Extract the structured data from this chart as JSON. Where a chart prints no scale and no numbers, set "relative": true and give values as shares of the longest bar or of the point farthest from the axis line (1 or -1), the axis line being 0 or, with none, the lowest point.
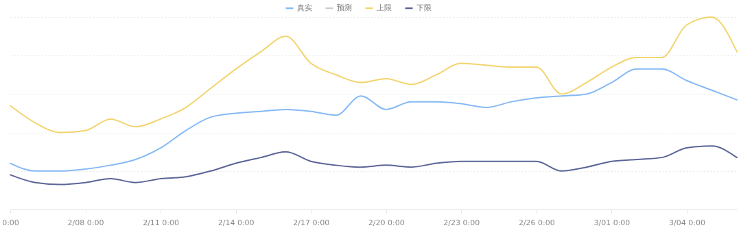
{
  "chart_data": {
    "type": "line",
    "relative": true,
    "grid": "y",
    "legend": "top",
    "line_style": "solid",
    "marker": "none",
    "x": [
      "--02-05",
      "--02-06",
      "--02-07",
      "--02-08",
      "--02-09",
      "--02-10",
      "--02-11",
      "--02-12",
      "--02-13",
      "--02-14",
      "--02-15",
      "--02-16",
      "--02-17",
      "--02-18",
      "--02-19",
      "--02-20",
      "--02-21",
      "--02-22",
      "--02-23",
      "--02-24",
      "--02-25",
      "--02-26",
      "--02-27",
      "--02-28",
      "--03-01",
      "--03-02",
      "--03-03",
      "--03-04",
      "--03-05",
      "--03-06"
    ],
    "xlim": [
      "--02-05",
      "--03-06"
    ],
    "xticks": [
      {
        "value": "--02-05",
        "label": "0:00"
      },
      {
        "value": "--02-08",
        "label": "2/08 0:00"
      },
      {
        "value": "--02-11",
        "label": "2/11 0:00"
      },
      {
        "value": "--02-14",
        "label": "2/14 0:00"
      },
      {
        "value": "--02-17",
        "label": "2/17 0:00"
      },
      {
        "value": "--02-20",
        "label": "2/20 0:00"
      },
      {
        "value": "--02-23",
        "label": "2/23 0:00"
      },
      {
        "value": "--02-26",
        "label": "2/26 0:00"
      },
      {
        "value": "--03-01",
        "label": "3/01 0:00"
      },
      {
        "value": "--03-04",
        "label": "3/04 0:00"
      }
    ],
    "series": [
      {
        "name": "真实",
        "color": "#85b9f5",
        "values": [
          0.24,
          0.2,
          0.2,
          0.21,
          0.23,
          0.26,
          0.32,
          0.41,
          0.48,
          0.5,
          0.51,
          0.52,
          0.51,
          0.49,
          0.59,
          0.52,
          0.56,
          0.56,
          0.55,
          0.53,
          0.56,
          0.58,
          0.59,
          0.6,
          0.66,
          0.73,
          0.73,
          0.67,
          0.62,
          0.57
        ]
      },
      {
        "name": "预测",
        "color": "#cccccc",
        "values": [
          null,
          null,
          null,
          null,
          null,
          null,
          null,
          null,
          null,
          null,
          null,
          null,
          null,
          null,
          null,
          null,
          null,
          null,
          null,
          null,
          null,
          null,
          null,
          null,
          null,
          null,
          null,
          null,
          null,
          null
        ]
      },
      {
        "name": "上限",
        "color": "#f2d46e",
        "values": [
          0.54,
          0.45,
          0.4,
          0.41,
          0.47,
          0.43,
          0.47,
          0.53,
          0.63,
          0.73,
          0.82,
          0.9,
          0.76,
          0.7,
          0.66,
          0.68,
          0.65,
          0.7,
          0.76,
          0.75,
          0.74,
          0.74,
          0.6,
          0.66,
          0.74,
          0.79,
          0.79,
          0.96,
          1,
          0.82
        ]
      },
      {
        "name": "下限",
        "color": "#5b6496",
        "values": [
          0.18,
          0.14,
          0.13,
          0.14,
          0.16,
          0.14,
          0.16,
          0.17,
          0.2,
          0.24,
          0.27,
          0.3,
          0.25,
          0.23,
          0.22,
          0.23,
          0.22,
          0.24,
          0.25,
          0.25,
          0.25,
          0.25,
          0.2,
          0.22,
          0.25,
          0.26,
          0.27,
          0.32,
          0.33,
          0.27
        ]
      }
    ]
  }
}
